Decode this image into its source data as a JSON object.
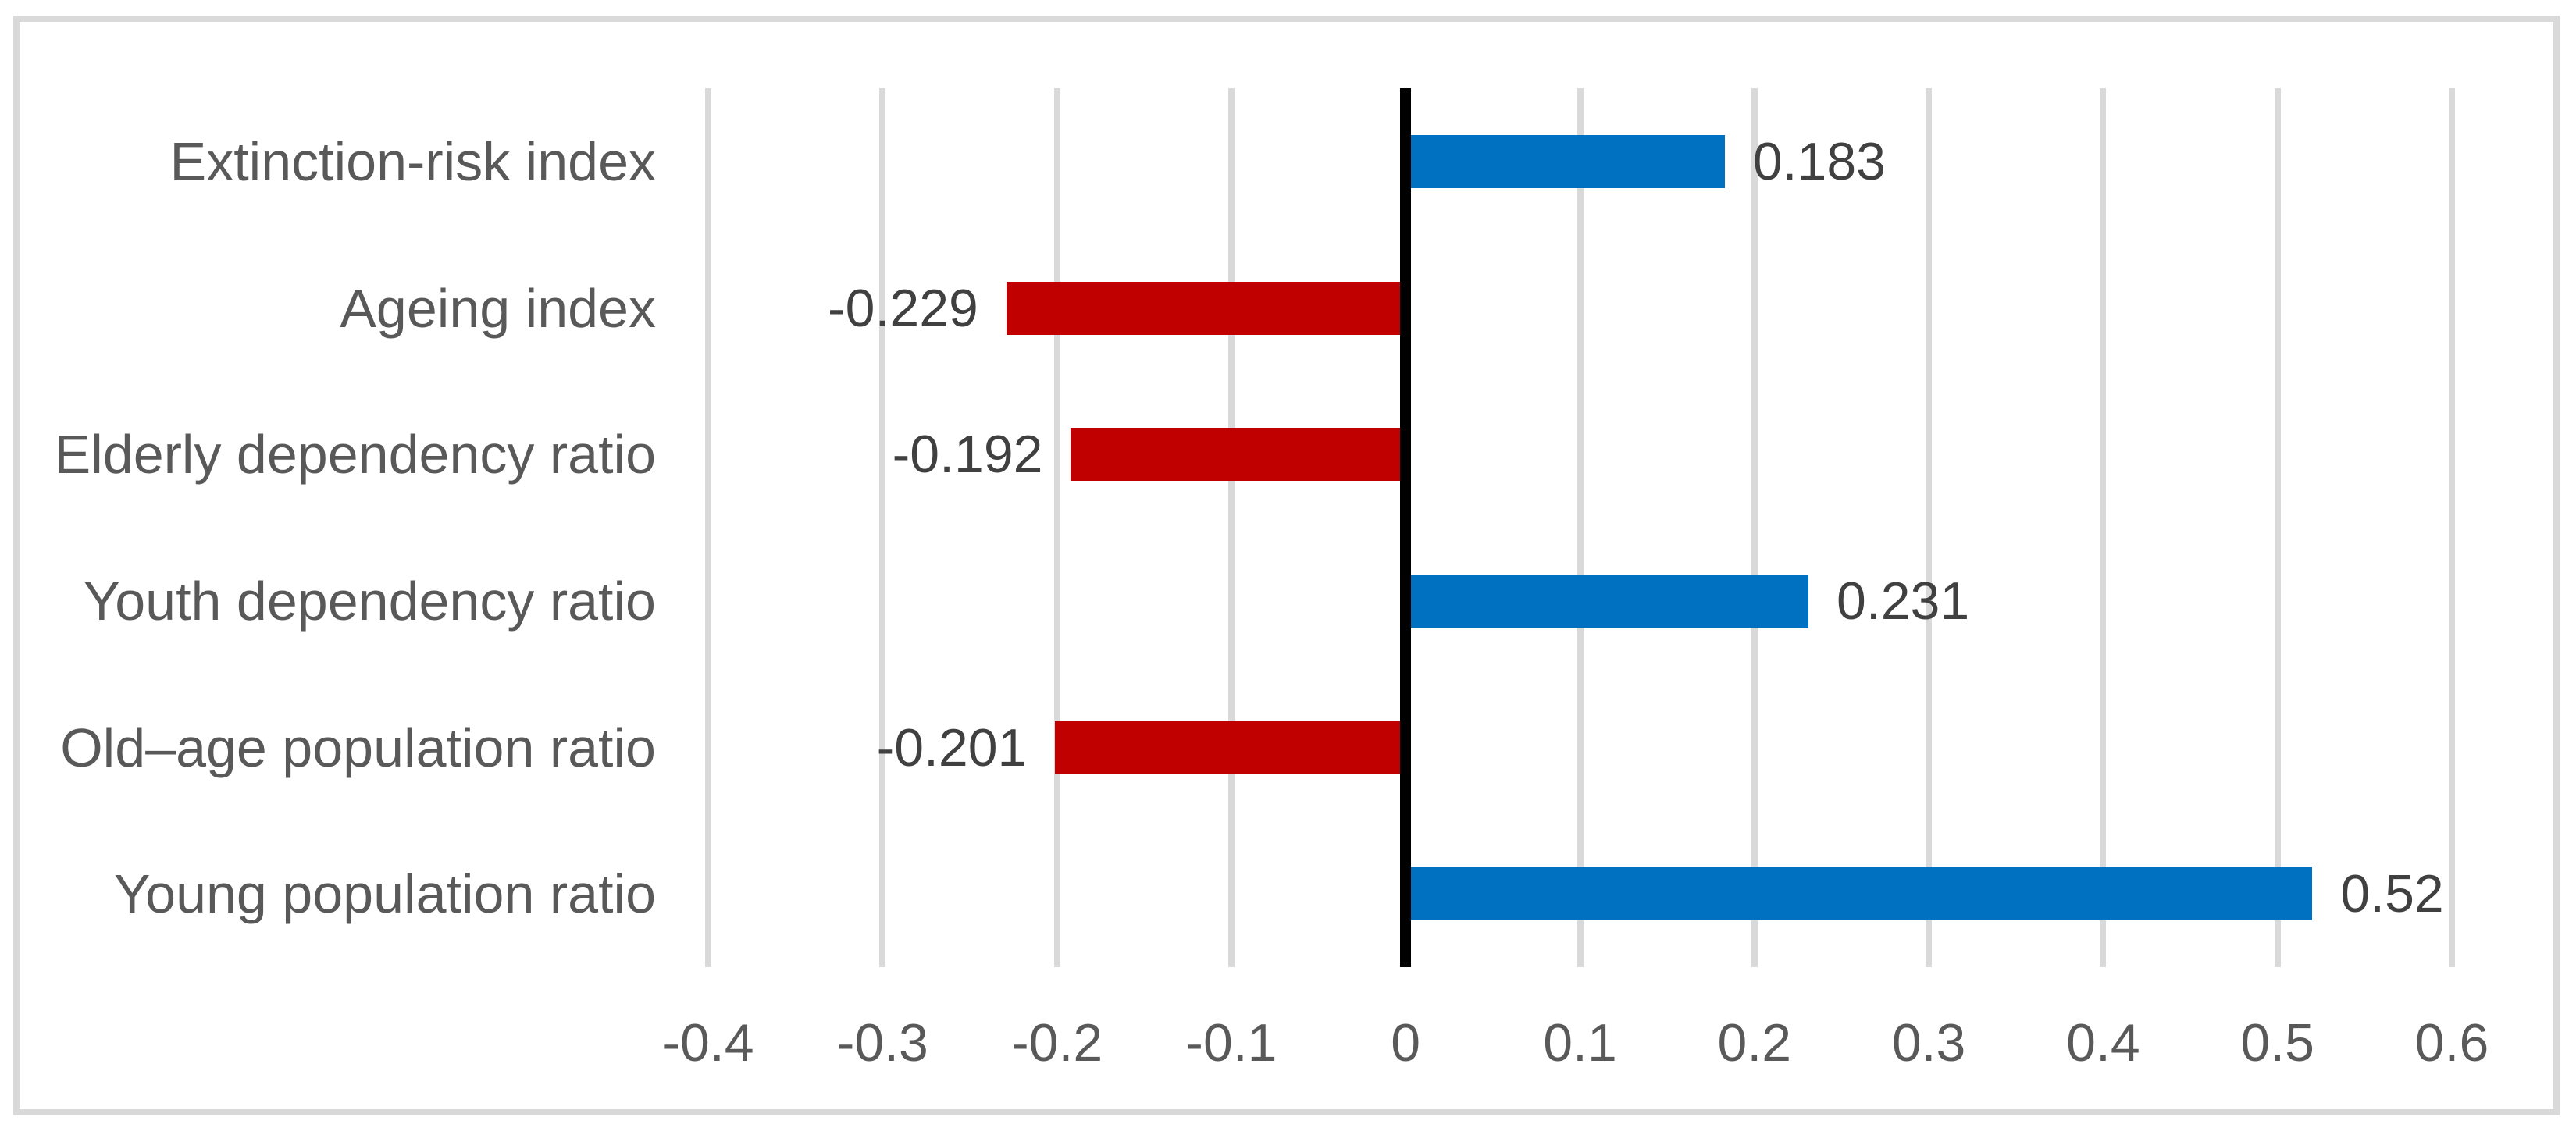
{
  "chart_data": {
    "type": "bar",
    "orientation": "horizontal",
    "title": "",
    "xlabel": "",
    "ylabel": "",
    "categories": [
      "Extinction-risk index",
      "Ageing index",
      "Elderly dependency ratio",
      "Youth dependency ratio",
      "Old–age population ratio",
      "Young population ratio"
    ],
    "values": [
      0.183,
      -0.229,
      -0.192,
      0.231,
      -0.201,
      0.52
    ],
    "data_labels": [
      "0.183",
      "-0.229",
      "-0.192",
      "0.231",
      "-0.201",
      "0.52"
    ],
    "xlim": [
      -0.4,
      0.6
    ],
    "xticks": [
      -0.4,
      -0.3,
      -0.2,
      -0.1,
      0,
      0.1,
      0.2,
      0.3,
      0.4,
      0.5,
      0.6
    ],
    "xtick_labels": [
      "-0.4",
      "-0.3",
      "-0.2",
      "-0.1",
      "0",
      "0.1",
      "0.2",
      "0.3",
      "0.4",
      "0.5",
      "0.6"
    ],
    "grid": true,
    "legend": "none",
    "colors": {
      "positive_bar": "#0070C0",
      "negative_bar": "#C00000",
      "gridline": "#D9D9D9",
      "zero_axis": "#000000",
      "axis_text": "#595959",
      "data_label_text": "#404040",
      "chart_border": "#D9D9D9",
      "background": "#FFFFFF"
    }
  }
}
